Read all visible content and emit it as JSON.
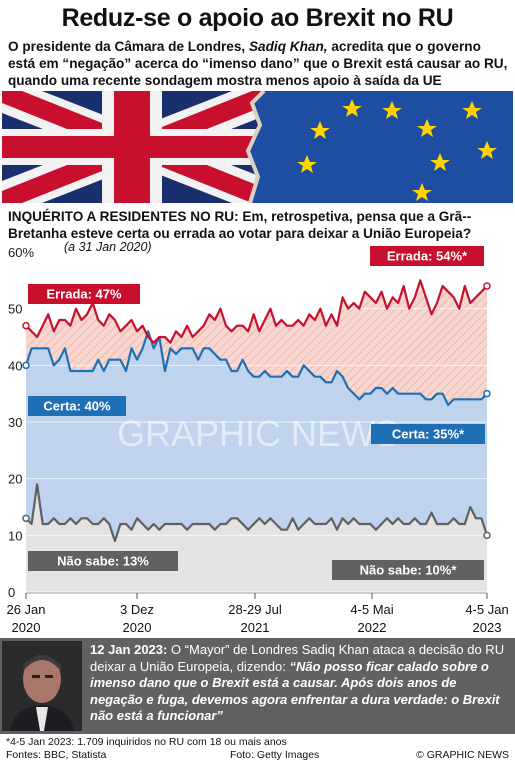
{
  "header": {
    "title": "Reduz-se o apoio ao Brexit no RU",
    "subtitle_a": "O presidente da Câmara de Londres, ",
    "subtitle_name": "Sadiq Khan,",
    "subtitle_b": " acredita que o governo está em “negação” acerca do “imenso dano” que o Brexit está causar ao RU, quando uma recente sondagem mostra menos apoio à saída da UE"
  },
  "question": "INQUÉRITO A RESIDENTES NO RU: Em, retrospetiva, pensa que a Grã--Bretanha esteve certa ou errada ao votar para deixar a União Europeia?",
  "as_of": "(a 31 Jan 2020)",
  "watermark": "GRAPHIC NEWS",
  "colors": {
    "errada": "#c8102e",
    "certa": "#1f6fb5",
    "nao_sabe": "#5f6163",
    "certa_fill": "#bfd3ec",
    "errada_fill": "#f6d6cf",
    "nao_fill": "#e3e3e3"
  },
  "chart_data": {
    "type": "line",
    "ylim": [
      0,
      60
    ],
    "y_ticks": [
      0,
      10,
      20,
      30,
      40,
      50
    ],
    "y_tick_labels": [
      "0",
      "10",
      "20",
      "30",
      "40",
      "50"
    ],
    "y_top_label": "60%",
    "x_tick_labels": [
      {
        "line1": "26 Jan",
        "line2": "2020"
      },
      {
        "line1": "3 Dez",
        "line2": "2020"
      },
      {
        "line1": "28-29 Jul",
        "line2": "2021"
      },
      {
        "line1": "4-5 Mai",
        "line2": "2022"
      },
      {
        "line1": "4-5 Jan",
        "line2": "2023"
      }
    ],
    "series": [
      {
        "name": "Errada",
        "key": "errada",
        "start_label": "Errada: 47%",
        "end_label": "Errada: 54%*",
        "values": [
          47,
          46,
          45,
          47,
          49,
          46,
          48,
          48,
          47,
          50,
          48,
          49,
          51,
          48,
          47,
          49,
          48,
          46,
          47,
          48,
          46,
          47,
          45,
          44,
          45,
          45,
          44,
          46,
          45,
          47,
          45,
          46,
          47,
          49,
          48,
          50,
          47,
          46,
          47,
          47,
          46,
          49,
          46,
          48,
          50,
          47,
          48,
          47,
          47,
          48,
          47,
          49,
          48,
          50,
          47,
          49,
          47,
          52,
          50,
          51,
          50,
          53,
          52,
          51,
          53,
          50,
          52,
          51,
          54,
          50,
          52,
          55,
          52,
          49,
          51,
          54,
          53,
          52,
          50,
          54,
          51,
          52,
          53,
          54
        ]
      },
      {
        "name": "Certa",
        "key": "certa",
        "start_label": "Certa: 40%",
        "end_label": "Certa: 35%*",
        "values": [
          40,
          43,
          43,
          43,
          43,
          40,
          41,
          43,
          39,
          39,
          39,
          39,
          39,
          41,
          39,
          41,
          41,
          41,
          39,
          43,
          41,
          43,
          46,
          43,
          45,
          39,
          43,
          42,
          43,
          43,
          43,
          41,
          43,
          43,
          42,
          41,
          41,
          39,
          39,
          41,
          39,
          38,
          38,
          39,
          38,
          38,
          38,
          39,
          38,
          38,
          40,
          39,
          38,
          38,
          37,
          37,
          39,
          38,
          36,
          35,
          34,
          35,
          35,
          36,
          36,
          35,
          36,
          35,
          35,
          35,
          35,
          35,
          34,
          34,
          35,
          35,
          33,
          34,
          34,
          34,
          34,
          34,
          34,
          35
        ]
      },
      {
        "name": "Não sabe",
        "key": "nao_sabe",
        "start_label": "Não sabe: 13%",
        "end_label": "Não sabe: 10%*",
        "values": [
          13,
          12,
          19,
          12,
          12,
          13,
          12,
          12,
          13,
          12,
          13,
          13,
          12,
          12,
          13,
          12,
          9,
          12,
          12,
          11,
          13,
          12,
          11,
          12,
          11,
          12,
          12,
          12,
          12,
          11,
          12,
          12,
          12,
          12,
          11,
          12,
          12,
          13,
          13,
          12,
          11,
          12,
          13,
          12,
          13,
          12,
          11,
          11,
          13,
          11,
          12,
          13,
          12,
          12,
          12,
          13,
          11,
          13,
          12,
          13,
          12,
          12,
          12,
          11,
          12,
          13,
          12,
          13,
          12,
          12,
          13,
          12,
          12,
          14,
          12,
          12,
          12,
          13,
          12,
          12,
          15,
          13,
          13,
          10
        ]
      }
    ]
  },
  "quote": {
    "date": "12 Jan 2023:",
    "intro": " O “Mayor” de Londres Sadiq Khan ataca a decisão do RU deixar a União Europeia, dizendo: ",
    "text": "“Não posso ficar calado sobre o imenso dano que o  Brexit está a causar. Após dois anos de negação e fuga, devemos agora enfrentar a dura verdade: o Brexit não está a funcionar”"
  },
  "footer": {
    "footnote": "*4-5 Jan 2023: 1.709 inquiridos no RU com 18 ou mais anos",
    "sources": "Fontes: BBC, Statista",
    "credit": "Foto: Getty Images",
    "brand": "© GRAPHIC NEWS"
  }
}
